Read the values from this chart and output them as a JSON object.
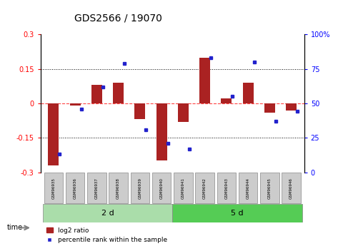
{
  "title": "GDS2566 / 19070",
  "samples": [
    "GSM96935",
    "GSM96936",
    "GSM96937",
    "GSM96938",
    "GSM96939",
    "GSM96940",
    "GSM96941",
    "GSM96942",
    "GSM96943",
    "GSM96944",
    "GSM96945",
    "GSM96946"
  ],
  "log2_ratio": [
    -0.27,
    -0.01,
    0.08,
    0.09,
    -0.07,
    -0.25,
    -0.08,
    0.2,
    0.02,
    0.09,
    -0.04,
    -0.03
  ],
  "percentile_rank": [
    13,
    46,
    62,
    79,
    31,
    21,
    17,
    83,
    55,
    80,
    37,
    44
  ],
  "group1_label": "2 d",
  "group2_label": "5 d",
  "group1_count": 6,
  "group2_count": 6,
  "ylim_left": [
    -0.3,
    0.3
  ],
  "ylim_right": [
    0,
    100
  ],
  "yticks_left": [
    -0.3,
    -0.15,
    0,
    0.15,
    0.3
  ],
  "yticks_right": [
    0,
    25,
    50,
    75,
    100
  ],
  "bar_color": "#AA2222",
  "dot_color": "#2222CC",
  "group1_color": "#AADDAA",
  "group2_color": "#55CC55",
  "dotted_lines": [
    -0.15,
    0.15
  ],
  "zero_line_color": "#FF4444",
  "legend_bar_label": "log2 ratio",
  "legend_dot_label": "percentile rank within the sample",
  "time_label": "time",
  "sample_box_color": "#CCCCCC",
  "bg_color": "#FFFFFF"
}
